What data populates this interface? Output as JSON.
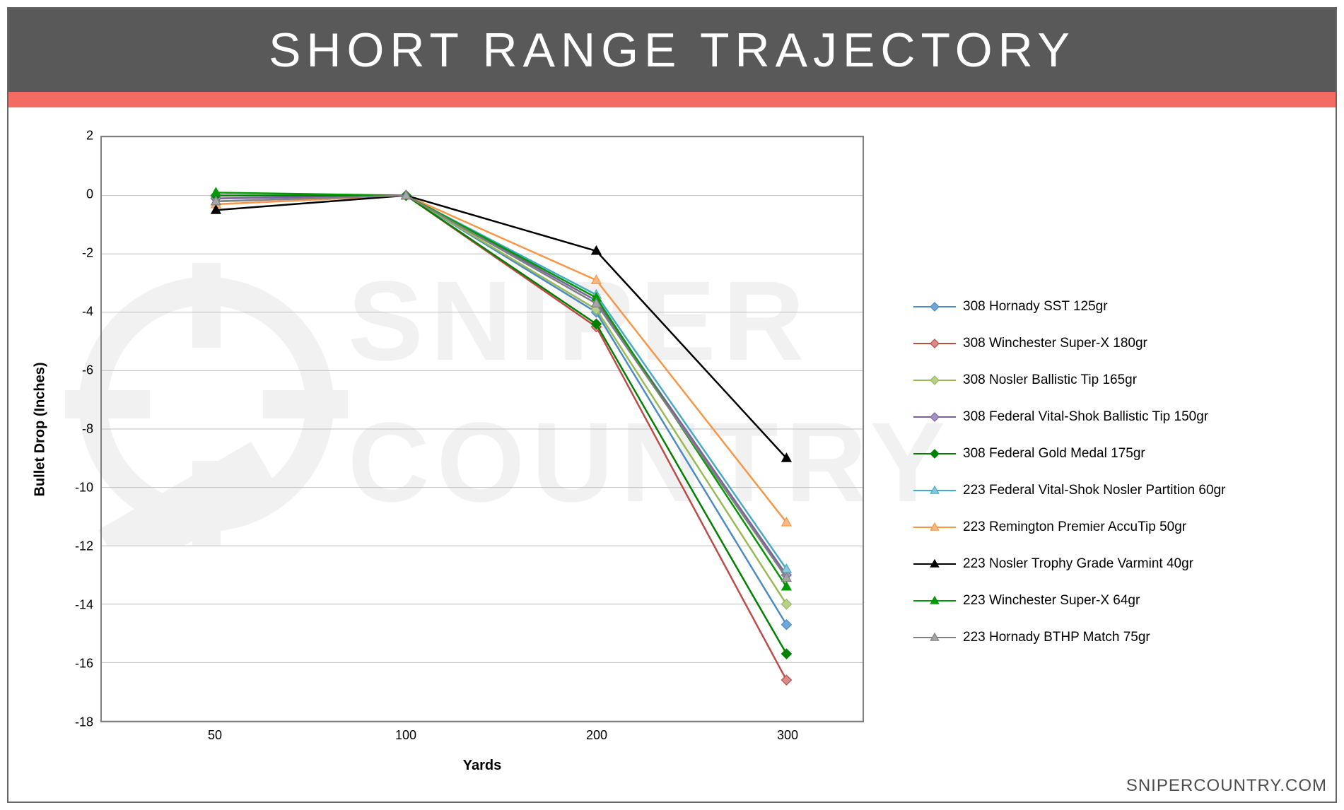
{
  "title": "SHORT RANGE TRAJECTORY",
  "title_bg": "#595959",
  "accent_color": "#f26c63",
  "attribution": "SNIPERCOUNTRY.COM",
  "chart": {
    "type": "line",
    "background_color": "#ffffff",
    "border_color": "#7f7f7f",
    "grid_color": "#bfbfbf",
    "y_axis": {
      "label": "Bullet Drop (Inches)",
      "min": -18,
      "max": 2,
      "tick_step": 2,
      "ticks": [
        2,
        0,
        -2,
        -4,
        -6,
        -8,
        -10,
        -12,
        -14,
        -16,
        -18
      ],
      "label_fontsize": 20,
      "tick_fontsize": 18
    },
    "x_axis": {
      "label": "Yards",
      "categories": [
        "50",
        "100",
        "200",
        "300"
      ],
      "positions": [
        0.15,
        0.4,
        0.65,
        0.9
      ],
      "label_fontsize": 20,
      "tick_fontsize": 18
    },
    "series": [
      {
        "name": "308 Hornady SST 125gr",
        "color": "#4a8bc6",
        "marker": "diamond",
        "marker_fill": "#6fa8d6",
        "values": [
          -0.1,
          0,
          -4.0,
          -14.7
        ]
      },
      {
        "name": "308 Winchester Super-X 180gr",
        "color": "#be4b48",
        "marker": "diamond",
        "marker_fill": "#d98b89",
        "values": [
          0.0,
          0,
          -4.5,
          -16.6
        ]
      },
      {
        "name": "308 Nosler Ballistic Tip 165gr",
        "color": "#98b954",
        "marker": "diamond",
        "marker_fill": "#b9d08c",
        "values": [
          0.0,
          0,
          -3.9,
          -14.0
        ]
      },
      {
        "name": "308 Federal Vital-Shok Ballistic Tip 150gr",
        "color": "#7d60a0",
        "marker": "diamond",
        "marker_fill": "#a593c0",
        "values": [
          -0.1,
          0,
          -3.6,
          -13.0
        ]
      },
      {
        "name": "308 Federal Gold Medal 175gr",
        "color": "#008000",
        "marker": "diamond",
        "marker_fill": "#008000",
        "values": [
          0.0,
          0,
          -4.4,
          -15.7
        ]
      },
      {
        "name": "223 Federal Vital-Shok Nosler Partition 60gr",
        "color": "#46aac5",
        "marker": "triangle",
        "marker_fill": "#88c9db",
        "values": [
          -0.2,
          0,
          -3.4,
          -12.8
        ]
      },
      {
        "name": "223 Remington Premier AccuTip 50gr",
        "color": "#f79646",
        "marker": "triangle",
        "marker_fill": "#f9b884",
        "values": [
          -0.3,
          0,
          -2.9,
          -11.2
        ]
      },
      {
        "name": "223 Nosler Trophy Grade Varmint 40gr",
        "color": "#000000",
        "marker": "triangle",
        "marker_fill": "#000000",
        "values": [
          -0.5,
          0,
          -1.9,
          -9.0
        ]
      },
      {
        "name": "223 Winchester Super-X 64gr",
        "color": "#009a00",
        "marker": "triangle",
        "marker_fill": "#009a00",
        "values": [
          0.1,
          0,
          -3.5,
          -13.4
        ]
      },
      {
        "name": "223 Hornady BTHP Match 75gr",
        "color": "#808080",
        "marker": "triangle",
        "marker_fill": "#a6a6a6",
        "values": [
          -0.2,
          0,
          -3.7,
          -13.1
        ]
      }
    ]
  },
  "watermark": {
    "line1": "SNIPER",
    "line2": "COUNTRY",
    "opacity": 0.05
  }
}
